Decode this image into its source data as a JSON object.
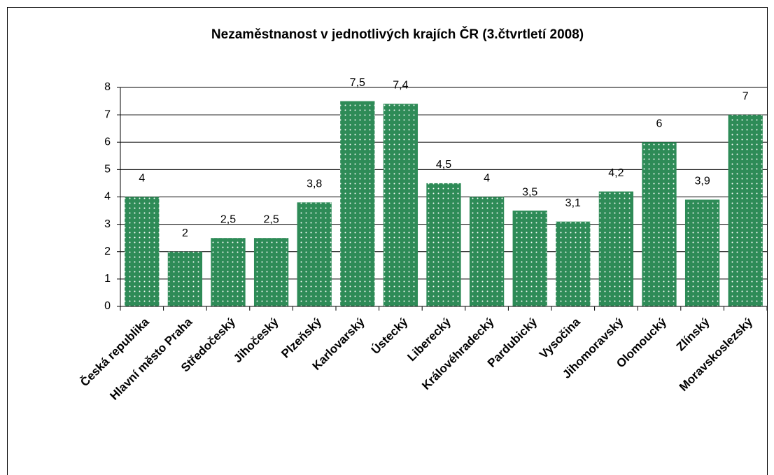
{
  "chart_data": {
    "type": "bar",
    "title": "Nezaměstnanost v jednotlivých krajích ČR (3.čtvrtletí 2008)",
    "categories": [
      "Česká republika",
      "Hlavní město Praha",
      "Středočeský",
      "Jihočeský",
      "Plzeňský",
      "Karlovarský",
      "Ústecký",
      "Liberecký",
      "Královéhradecký",
      "Pardubický",
      "Vysočina",
      "Jihomoravský",
      "Olomoucký",
      "Zlínský",
      "Moravskoslezský"
    ],
    "values": [
      4,
      2,
      2.5,
      2.5,
      3.8,
      7.5,
      7.4,
      4.5,
      4,
      3.5,
      3.1,
      4.2,
      6,
      3.9,
      7
    ],
    "value_labels": [
      "4",
      "2",
      "2,5",
      "2,5",
      "3,8",
      "7,5",
      "7,4",
      "4,5",
      "4",
      "3,5",
      "3,1",
      "4,2",
      "6",
      "3,9",
      "7"
    ],
    "color": "#2e8b57",
    "ylim": [
      0,
      8
    ],
    "yticks": [
      0,
      1,
      2,
      3,
      4,
      5,
      6,
      7,
      8
    ],
    "grid": true
  }
}
